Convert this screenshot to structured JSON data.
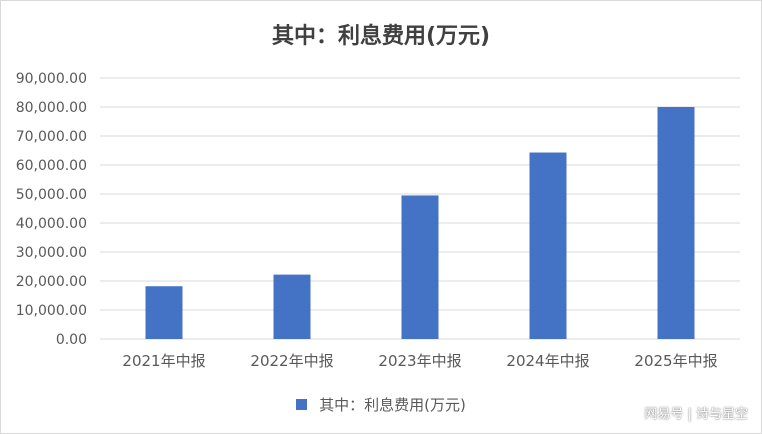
{
  "chart_data": {
    "type": "bar",
    "title": "其中：利息费用(万元)",
    "categories": [
      "2021年中报",
      "2022年中报",
      "2023年中报",
      "2024年中报",
      "2025年中报"
    ],
    "series": [
      {
        "name": "其中：利息费用(万元)",
        "color": "#4472c4",
        "values": [
          18200,
          22200,
          49500,
          64300,
          80000
        ]
      }
    ],
    "ylim": [
      0,
      90000
    ],
    "yticks": [
      "0.00",
      "10,000.00",
      "20,000.00",
      "30,000.00",
      "40,000.00",
      "50,000.00",
      "60,000.00",
      "70,000.00",
      "80,000.00",
      "90,000.00"
    ],
    "grid": true,
    "legend_position": "bottom"
  },
  "watermark": "网易号 | 诗与星空"
}
